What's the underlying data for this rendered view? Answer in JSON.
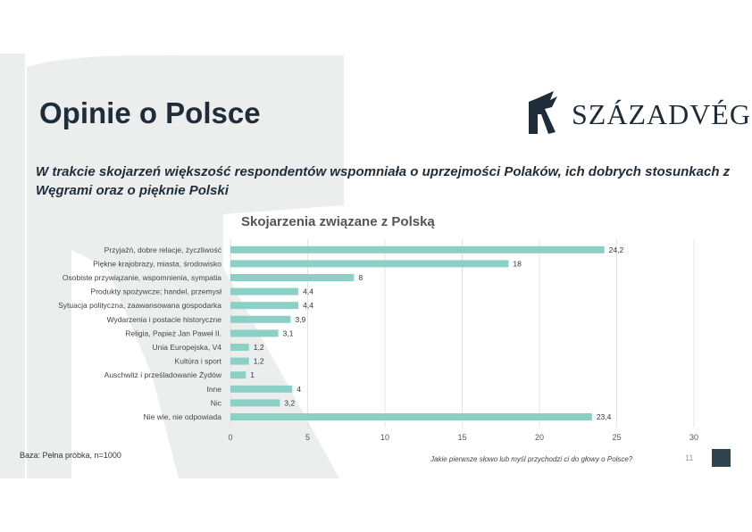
{
  "page": {
    "title": "Opinie o Polsce",
    "subtitle": "W trakcie skojarzeń większość respondentów wspomniała o uprzejmości Polaków, ich dobrych stosunkach z Węgrami oraz o pięknie Polski",
    "base_note": "Baza: Pełna próbka, n=1000",
    "question": "Jakie pierwsze słowo lub myśl przychodzi ci do głowy o Polsce?",
    "page_number": "11"
  },
  "logo": {
    "text": "SZÁZADVÉG",
    "icon": "szazadveg-emblem-icon"
  },
  "colors": {
    "bar": "#8ccfc5",
    "title": "#1f2d3a",
    "background_mark": "#eceeed",
    "corner_square": "#2e4450"
  },
  "chart_data": {
    "type": "bar",
    "orientation": "horizontal",
    "title": "Skojarzenia związane z Polską",
    "categories": [
      "Przyjaźń, dobre relacje, życzliwość",
      "Piękne krajobrazy, miasta, środowisko",
      "Osobiste przywiązanie, wspomnienia, sympatia",
      "Produkty spożywcze; handel, przemysł",
      "Sytuacja polityczna, zaawansowana gospodarka",
      "Wydarzenia i postacie historyczne",
      "Religia, Papież Jan Paweł II.",
      "Unia Europejska, V4",
      "Kultúra i sport",
      "Auschwitz i prześladowanie Żydów",
      "Inne",
      "Nic",
      "Nie wie, nie odpowiada"
    ],
    "values": [
      24.2,
      18,
      8,
      4.4,
      4.4,
      3.9,
      3.1,
      1.2,
      1.2,
      1,
      4,
      3.2,
      23.4
    ],
    "value_labels": [
      "24,2",
      "18",
      "8",
      "4,4",
      "4,4",
      "3,9",
      "3,1",
      "1,2",
      "1,2",
      "1",
      "4",
      "3,2",
      "23,4"
    ],
    "xlim": [
      0,
      30
    ],
    "xticks": [
      0,
      5,
      10,
      15,
      20,
      25,
      30
    ],
    "xtick_labels": [
      "0",
      "5",
      "10",
      "15",
      "20",
      "25",
      "30"
    ],
    "grid": "vertical",
    "legend": "none"
  }
}
